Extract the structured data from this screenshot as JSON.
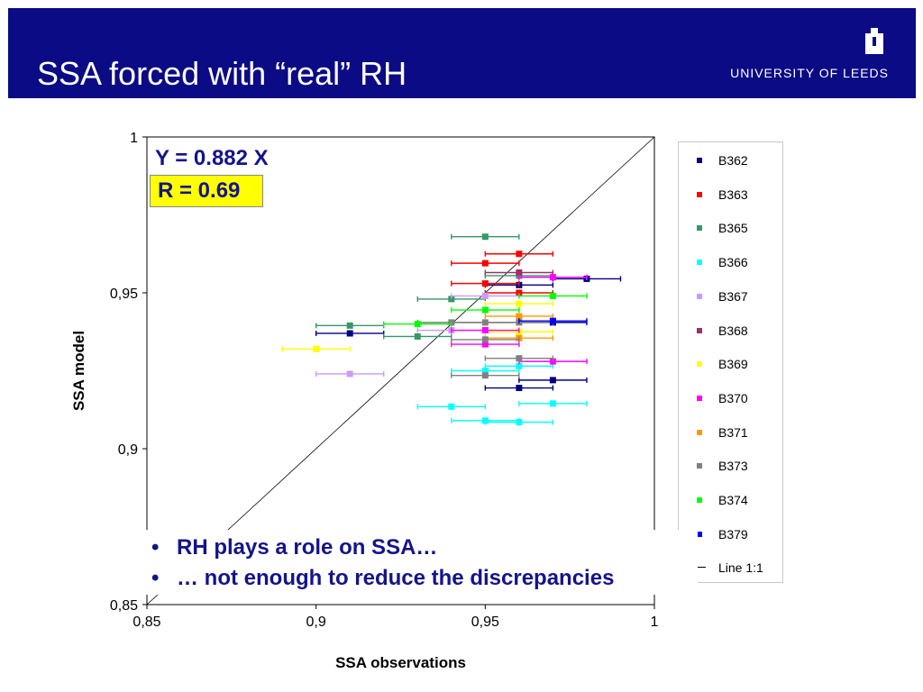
{
  "header": {
    "title": "SSA forced with “real” RH",
    "logo_text": "UNIVERSITY OF LEEDS",
    "background": "#0b0b85"
  },
  "annotations": {
    "equation": "Y = 0.882 X",
    "r_value": "R = 0.69"
  },
  "bullets": [
    {
      "marker": "•",
      "text": "RH plays a role on SSA…"
    },
    {
      "marker": "•",
      "text": "… not enough to reduce the discrepancies"
    }
  ],
  "chart_data": {
    "type": "scatter",
    "xlabel": "SSA observations",
    "ylabel": "SSA model",
    "xlim": [
      0.85,
      1.0
    ],
    "ylim": [
      0.85,
      1.0
    ],
    "x_ticks": [
      {
        "value": 0.85,
        "label": "0,85"
      },
      {
        "value": 0.9,
        "label": "0,9"
      },
      {
        "value": 0.95,
        "label": "0,95"
      },
      {
        "value": 1.0,
        "label": "1"
      }
    ],
    "y_ticks": [
      {
        "value": 0.85,
        "label": "0,85"
      },
      {
        "value": 0.9,
        "label": "0,9"
      },
      {
        "value": 0.95,
        "label": "0,95"
      },
      {
        "value": 1.0,
        "label": "1"
      }
    ],
    "grid": false,
    "legend_position": "right",
    "reference_line": {
      "name": "Line 1:1",
      "from": [
        0.85,
        0.85
      ],
      "to": [
        1.0,
        1.0
      ],
      "color": "#000000"
    },
    "series": [
      {
        "name": "B362",
        "color": "#000080",
        "points": [
          {
            "x": 0.91,
            "y": 0.937,
            "xerr": 0.01
          },
          {
            "x": 0.96,
            "y": 0.9525,
            "xerr": 0.01
          },
          {
            "x": 0.98,
            "y": 0.9545,
            "xerr": 0.01
          },
          {
            "x": 0.97,
            "y": 0.9405,
            "xerr": 0.01
          },
          {
            "x": 0.97,
            "y": 0.922,
            "xerr": 0.01
          },
          {
            "x": 0.96,
            "y": 0.9195,
            "xerr": 0.01
          }
        ]
      },
      {
        "name": "B363",
        "color": "#ff0000",
        "points": [
          {
            "x": 0.96,
            "y": 0.9625,
            "xerr": 0.01
          },
          {
            "x": 0.95,
            "y": 0.9595,
            "xerr": 0.01
          },
          {
            "x": 0.95,
            "y": 0.953,
            "xerr": 0.01
          },
          {
            "x": 0.96,
            "y": 0.95,
            "xerr": 0.01
          }
        ]
      },
      {
        "name": "B365",
        "color": "#339966",
        "points": [
          {
            "x": 0.95,
            "y": 0.968,
            "xerr": 0.01
          },
          {
            "x": 0.94,
            "y": 0.948,
            "xerr": 0.01
          },
          {
            "x": 0.91,
            "y": 0.9395,
            "xerr": 0.01
          },
          {
            "x": 0.93,
            "y": 0.936,
            "xerr": 0.01
          },
          {
            "x": 0.96,
            "y": 0.9555,
            "xerr": 0.01
          }
        ]
      },
      {
        "name": "B366",
        "color": "#00ffff",
        "points": [
          {
            "x": 0.95,
            "y": 0.925,
            "xerr": 0.01
          },
          {
            "x": 0.96,
            "y": 0.9265,
            "xerr": 0.01
          },
          {
            "x": 0.94,
            "y": 0.9135,
            "xerr": 0.01
          },
          {
            "x": 0.97,
            "y": 0.9145,
            "xerr": 0.01
          },
          {
            "x": 0.95,
            "y": 0.909,
            "xerr": 0.01
          },
          {
            "x": 0.96,
            "y": 0.9085,
            "xerr": 0.01
          }
        ]
      },
      {
        "name": "B367",
        "color": "#cc99ff",
        "points": [
          {
            "x": 0.91,
            "y": 0.924,
            "xerr": 0.01
          },
          {
            "x": 0.95,
            "y": 0.949,
            "xerr": 0.01
          },
          {
            "x": 0.94,
            "y": 0.938,
            "xerr": 0.01
          },
          {
            "x": 0.97,
            "y": 0.955,
            "xerr": 0.01
          }
        ]
      },
      {
        "name": "B368",
        "color": "#993366",
        "points": [
          {
            "x": 0.96,
            "y": 0.9565,
            "xerr": 0.01
          }
        ]
      },
      {
        "name": "B369",
        "color": "#ffff00",
        "points": [
          {
            "x": 0.9,
            "y": 0.932,
            "xerr": 0.01
          },
          {
            "x": 0.96,
            "y": 0.9465,
            "xerr": 0.01
          },
          {
            "x": 0.96,
            "y": 0.9375,
            "xerr": 0.01
          }
        ]
      },
      {
        "name": "B370",
        "color": "#ff00ff",
        "points": [
          {
            "x": 0.97,
            "y": 0.955,
            "xerr": 0.01
          },
          {
            "x": 0.95,
            "y": 0.938,
            "xerr": 0.01
          },
          {
            "x": 0.95,
            "y": 0.9335,
            "xerr": 0.01
          },
          {
            "x": 0.97,
            "y": 0.928,
            "xerr": 0.01
          }
        ]
      },
      {
        "name": "B371",
        "color": "#ff9900",
        "points": [
          {
            "x": 0.96,
            "y": 0.9425,
            "xerr": 0.01
          },
          {
            "x": 0.96,
            "y": 0.9355,
            "xerr": 0.01
          }
        ]
      },
      {
        "name": "B373",
        "color": "#808080",
        "points": [
          {
            "x": 0.94,
            "y": 0.9405,
            "xerr": 0.01
          },
          {
            "x": 0.95,
            "y": 0.9405,
            "xerr": 0.01
          },
          {
            "x": 0.96,
            "y": 0.9405,
            "xerr": 0.01
          },
          {
            "x": 0.95,
            "y": 0.935,
            "xerr": 0.01
          },
          {
            "x": 0.96,
            "y": 0.929,
            "xerr": 0.01
          },
          {
            "x": 0.95,
            "y": 0.9235,
            "xerr": 0.01
          }
        ]
      },
      {
        "name": "B374",
        "color": "#00ff00",
        "points": [
          {
            "x": 0.93,
            "y": 0.94,
            "xerr": 0.01
          },
          {
            "x": 0.95,
            "y": 0.9445,
            "xerr": 0.01
          },
          {
            "x": 0.97,
            "y": 0.949,
            "xerr": 0.01
          }
        ]
      },
      {
        "name": "B379",
        "color": "#0000ff",
        "points": [
          {
            "x": 0.97,
            "y": 0.941,
            "xerr": 0.01
          }
        ]
      }
    ]
  }
}
